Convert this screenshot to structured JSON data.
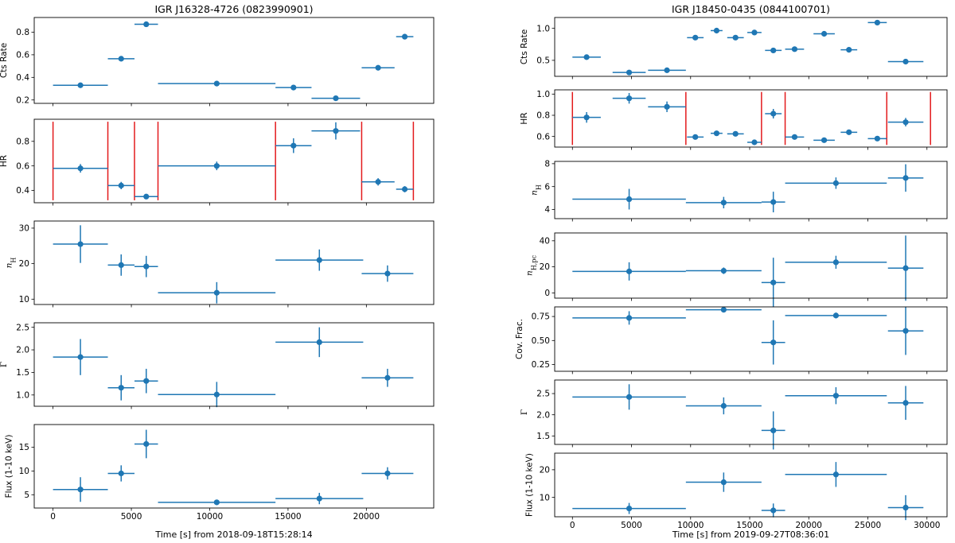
{
  "colors": {
    "marker": "#1f77b4",
    "divider": "#e31a1c",
    "frame": "#000000"
  },
  "chart_data": [
    {
      "type": "scatter",
      "style": "errorbar",
      "title": "IGR J16328-4726 (0823990901)",
      "xlabel": "Time [s] from 2018-09-18T15:28:14",
      "xlim": [
        -1200,
        24300
      ],
      "xticks": [
        0,
        5000,
        10000,
        15000,
        20000
      ],
      "panels": [
        {
          "ylabel": "Cts Rate",
          "ylim": [
            0.17,
            0.93
          ],
          "yticks": [
            {
              "v": 0.2,
              "label": "0.2"
            },
            {
              "v": 0.4,
              "label": "0.4"
            },
            {
              "v": 0.6,
              "label": "0.6"
            },
            {
              "v": 0.8,
              "label": "0.8"
            }
          ],
          "points": [
            {
              "x": 1750,
              "xerr": 1750,
              "y": 0.33,
              "yerr": 0.01
            },
            {
              "x": 4350,
              "xerr": 850,
              "y": 0.565,
              "yerr": 0.01
            },
            {
              "x": 5950,
              "xerr": 750,
              "y": 0.87,
              "yerr": 0.012
            },
            {
              "x": 10450,
              "xerr": 3750,
              "y": 0.345,
              "yerr": 0.008
            },
            {
              "x": 15350,
              "xerr": 1150,
              "y": 0.31,
              "yerr": 0.01
            },
            {
              "x": 18050,
              "xerr": 1550,
              "y": 0.215,
              "yerr": 0.008
            },
            {
              "x": 20750,
              "xerr": 1050,
              "y": 0.485,
              "yerr": 0.01
            },
            {
              "x": 22450,
              "xerr": 550,
              "y": 0.76,
              "yerr": 0.012
            }
          ]
        },
        {
          "ylabel": "HR",
          "ylim": [
            0.3,
            0.98
          ],
          "yticks": [
            {
              "v": 0.4,
              "label": "0.4"
            },
            {
              "v": 0.6,
              "label": "0.6"
            },
            {
              "v": 0.8,
              "label": "0.8"
            }
          ],
          "dividers": [
            0,
            3500,
            5200,
            6700,
            14200,
            19700,
            23000
          ],
          "divider_range": [
            0.32,
            0.96
          ],
          "points": [
            {
              "x": 1750,
              "xerr": 1750,
              "y": 0.58,
              "yerr": 0.035
            },
            {
              "x": 4350,
              "xerr": 850,
              "y": 0.44,
              "yerr": 0.03
            },
            {
              "x": 5950,
              "xerr": 750,
              "y": 0.35,
              "yerr": 0.015
            },
            {
              "x": 10450,
              "xerr": 3750,
              "y": 0.6,
              "yerr": 0.035
            },
            {
              "x": 15350,
              "xerr": 1150,
              "y": 0.765,
              "yerr": 0.06
            },
            {
              "x": 18050,
              "xerr": 1550,
              "y": 0.885,
              "yerr": 0.07
            },
            {
              "x": 20750,
              "xerr": 1050,
              "y": 0.47,
              "yerr": 0.03
            },
            {
              "x": 22450,
              "xerr": 550,
              "y": 0.41,
              "yerr": 0.025
            }
          ]
        },
        {
          "ylabel": "n_H",
          "ylim": [
            8.5,
            32
          ],
          "yticks": [
            {
              "v": 10,
              "label": "10"
            },
            {
              "v": 20,
              "label": "20"
            },
            {
              "v": 30,
              "label": "30"
            }
          ],
          "points": [
            {
              "x": 1750,
              "xerr": 1750,
              "y": 25.5,
              "yerr": 5.3
            },
            {
              "x": 4350,
              "xerr": 850,
              "y": 19.6,
              "yerr": 3
            },
            {
              "x": 5950,
              "xerr": 750,
              "y": 19.2,
              "yerr": 3
            },
            {
              "x": 10450,
              "xerr": 3750,
              "y": 11.8,
              "yerr": 3
            },
            {
              "x": 17000,
              "xerr": 2800,
              "y": 21,
              "yerr": 3
            },
            {
              "x": 21350,
              "xerr": 1650,
              "y": 17.2,
              "yerr": 2.3
            }
          ]
        },
        {
          "ylabel": "Γ",
          "ylim": [
            0.75,
            2.6
          ],
          "yticks": [
            {
              "v": 1.0,
              "label": "1.0"
            },
            {
              "v": 1.5,
              "label": "1.5"
            },
            {
              "v": 2.0,
              "label": "2.0"
            },
            {
              "v": 2.5,
              "label": "2.5"
            }
          ],
          "points": [
            {
              "x": 1750,
              "xerr": 1750,
              "y": 1.84,
              "yerr": 0.4
            },
            {
              "x": 4350,
              "xerr": 850,
              "y": 1.16,
              "yerr": 0.28
            },
            {
              "x": 5950,
              "xerr": 750,
              "y": 1.31,
              "yerr": 0.27
            },
            {
              "x": 10450,
              "xerr": 3750,
              "y": 1.01,
              "yerr": 0.28
            },
            {
              "x": 17000,
              "xerr": 2800,
              "y": 2.17,
              "yerr": 0.33
            },
            {
              "x": 21350,
              "xerr": 1650,
              "y": 1.38,
              "yerr": 0.2
            }
          ]
        },
        {
          "ylabel": "Flux (1-10 keV)",
          "ylim": [
            2.2,
            19.8
          ],
          "yticks": [
            {
              "v": 5,
              "label": "5"
            },
            {
              "v": 10,
              "label": "10"
            },
            {
              "v": 15,
              "label": "15"
            }
          ],
          "points": [
            {
              "x": 1750,
              "xerr": 1750,
              "y": 6.1,
              "yerr": 2.6
            },
            {
              "x": 4350,
              "xerr": 850,
              "y": 9.5,
              "yerr": 1.7
            },
            {
              "x": 5950,
              "xerr": 750,
              "y": 15.7,
              "yerr": 3
            },
            {
              "x": 10450,
              "xerr": 3750,
              "y": 3.4,
              "yerr": 0.5
            },
            {
              "x": 17000,
              "xerr": 2800,
              "y": 4.2,
              "yerr": 1.2
            },
            {
              "x": 21350,
              "xerr": 1650,
              "y": 9.5,
              "yerr": 1.3
            }
          ]
        }
      ]
    },
    {
      "type": "scatter",
      "style": "errorbar",
      "title": "IGR J18450-0435 (0844100701)",
      "xlabel": "Time [s] from 2019-09-27T08:36:01",
      "xlim": [
        -1500,
        31700
      ],
      "xticks": [
        0,
        5000,
        10000,
        15000,
        20000,
        25000,
        30000
      ],
      "panels": [
        {
          "ylabel": "Cts Rate",
          "ylim": [
            0.25,
            1.17
          ],
          "yticks": [
            {
              "v": 0.5,
              "label": "0.5"
            },
            {
              "v": 1.0,
              "label": "1.0"
            }
          ],
          "points": [
            {
              "x": 1200,
              "xerr": 1200,
              "y": 0.55,
              "yerr": 0.012
            },
            {
              "x": 4800,
              "xerr": 1400,
              "y": 0.31,
              "yerr": 0.01
            },
            {
              "x": 8000,
              "xerr": 1600,
              "y": 0.345,
              "yerr": 0.01
            },
            {
              "x": 10400,
              "xerr": 700,
              "y": 0.855,
              "yerr": 0.015
            },
            {
              "x": 12200,
              "xerr": 500,
              "y": 0.965,
              "yerr": 0.015
            },
            {
              "x": 13800,
              "xerr": 700,
              "y": 0.855,
              "yerr": 0.015
            },
            {
              "x": 15400,
              "xerr": 600,
              "y": 0.935,
              "yerr": 0.015
            },
            {
              "x": 17000,
              "xerr": 700,
              "y": 0.655,
              "yerr": 0.012
            },
            {
              "x": 18800,
              "xerr": 800,
              "y": 0.675,
              "yerr": 0.012
            },
            {
              "x": 21300,
              "xerr": 900,
              "y": 0.915,
              "yerr": 0.015
            },
            {
              "x": 23400,
              "xerr": 700,
              "y": 0.665,
              "yerr": 0.012
            },
            {
              "x": 25800,
              "xerr": 800,
              "y": 1.09,
              "yerr": 0.015
            },
            {
              "x": 28200,
              "xerr": 1500,
              "y": 0.48,
              "yerr": 0.012
            }
          ]
        },
        {
          "ylabel": "HR",
          "ylim": [
            0.5,
            1.04
          ],
          "yticks": [
            {
              "v": 0.6,
              "label": "0.6"
            },
            {
              "v": 0.8,
              "label": "0.8"
            },
            {
              "v": 1.0,
              "label": "1.0"
            }
          ],
          "dividers": [
            0,
            9600,
            16000,
            18000,
            26600,
            30300
          ],
          "divider_range": [
            0.52,
            1.02
          ],
          "points": [
            {
              "x": 1200,
              "xerr": 1200,
              "y": 0.78,
              "yerr": 0.05
            },
            {
              "x": 4800,
              "xerr": 1400,
              "y": 0.96,
              "yerr": 0.05
            },
            {
              "x": 8000,
              "xerr": 1600,
              "y": 0.88,
              "yerr": 0.05
            },
            {
              "x": 10400,
              "xerr": 700,
              "y": 0.595,
              "yerr": 0.02
            },
            {
              "x": 12200,
              "xerr": 500,
              "y": 0.63,
              "yerr": 0.02
            },
            {
              "x": 13800,
              "xerr": 700,
              "y": 0.625,
              "yerr": 0.02
            },
            {
              "x": 15400,
              "xerr": 600,
              "y": 0.545,
              "yerr": 0.015
            },
            {
              "x": 17000,
              "xerr": 700,
              "y": 0.815,
              "yerr": 0.045
            },
            {
              "x": 18800,
              "xerr": 800,
              "y": 0.595,
              "yerr": 0.02
            },
            {
              "x": 21300,
              "xerr": 900,
              "y": 0.565,
              "yerr": 0.02
            },
            {
              "x": 23400,
              "xerr": 700,
              "y": 0.64,
              "yerr": 0.025
            },
            {
              "x": 25800,
              "xerr": 800,
              "y": 0.58,
              "yerr": 0.02
            },
            {
              "x": 28200,
              "xerr": 1500,
              "y": 0.735,
              "yerr": 0.04
            }
          ]
        },
        {
          "ylabel": "n_H",
          "ylim": [
            3.2,
            8.2
          ],
          "yticks": [
            {
              "v": 4,
              "label": "4"
            },
            {
              "v": 6,
              "label": "6"
            },
            {
              "v": 8,
              "label": "8"
            }
          ],
          "points": [
            {
              "x": 4800,
              "xerr": 4800,
              "y": 4.9,
              "yerr": 0.9
            },
            {
              "x": 12800,
              "xerr": 3200,
              "y": 4.6,
              "yerr": 0.5
            },
            {
              "x": 17000,
              "xerr": 1000,
              "y": 4.65,
              "yerr": 0.9
            },
            {
              "x": 22300,
              "xerr": 4300,
              "y": 6.3,
              "yerr": 0.5
            },
            {
              "x": 28200,
              "xerr": 1500,
              "y": 6.75,
              "yerr": 1.2
            }
          ]
        },
        {
          "ylabel": "n_H,pc",
          "ylim": [
            -4,
            46
          ],
          "yticks": [
            {
              "v": 0,
              "label": "0"
            },
            {
              "v": 20,
              "label": "20"
            },
            {
              "v": 40,
              "label": "40"
            }
          ],
          "points": [
            {
              "x": 4800,
              "xerr": 4800,
              "y": 16.5,
              "yerr": 7
            },
            {
              "x": 12800,
              "xerr": 3200,
              "y": 17,
              "yerr": 2.5
            },
            {
              "x": 17000,
              "xerr": 1000,
              "y": 8,
              "yerr": 19
            },
            {
              "x": 22300,
              "xerr": 4300,
              "y": 23.5,
              "yerr": 5
            },
            {
              "x": 28200,
              "xerr": 1500,
              "y": 19,
              "yerr": 25
            }
          ]
        },
        {
          "ylabel": "Cov. Frac.",
          "ylim": [
            0.18,
            0.85
          ],
          "yticks": [
            {
              "v": 0.25,
              "label": "0.25"
            },
            {
              "v": 0.5,
              "label": "0.50"
            },
            {
              "v": 0.75,
              "label": "0.75"
            }
          ],
          "points": [
            {
              "x": 4800,
              "xerr": 4800,
              "y": 0.735,
              "yerr": 0.07
            },
            {
              "x": 12800,
              "xerr": 3200,
              "y": 0.82,
              "yerr": 0.01
            },
            {
              "x": 17000,
              "xerr": 1000,
              "y": 0.48,
              "yerr": 0.23
            },
            {
              "x": 22300,
              "xerr": 4300,
              "y": 0.76,
              "yerr": 0.03
            },
            {
              "x": 28200,
              "xerr": 1500,
              "y": 0.6,
              "yerr": 0.25
            }
          ]
        },
        {
          "ylabel": "Γ",
          "ylim": [
            1.3,
            2.82
          ],
          "yticks": [
            {
              "v": 1.5,
              "label": "1.5"
            },
            {
              "v": 2.0,
              "label": "2.0"
            },
            {
              "v": 2.5,
              "label": "2.5"
            }
          ],
          "points": [
            {
              "x": 4800,
              "xerr": 4800,
              "y": 2.42,
              "yerr": 0.3
            },
            {
              "x": 12800,
              "xerr": 3200,
              "y": 2.21,
              "yerr": 0.2
            },
            {
              "x": 17000,
              "xerr": 1000,
              "y": 1.63,
              "yerr": 0.45
            },
            {
              "x": 22300,
              "xerr": 4300,
              "y": 2.45,
              "yerr": 0.2
            },
            {
              "x": 28200,
              "xerr": 1500,
              "y": 2.28,
              "yerr": 0.4
            }
          ]
        },
        {
          "ylabel": "Flux (1-10 keV)",
          "ylim": [
            3,
            26
          ],
          "yticks": [
            {
              "v": 10,
              "label": "10"
            },
            {
              "v": 20,
              "label": "20"
            }
          ],
          "points": [
            {
              "x": 4800,
              "xerr": 4800,
              "y": 6,
              "yerr": 2
            },
            {
              "x": 12800,
              "xerr": 3200,
              "y": 15.5,
              "yerr": 3.5
            },
            {
              "x": 17000,
              "xerr": 1000,
              "y": 5.3,
              "yerr": 2.5
            },
            {
              "x": 22300,
              "xerr": 4300,
              "y": 18.3,
              "yerr": 4.5
            },
            {
              "x": 28200,
              "xerr": 1500,
              "y": 6.3,
              "yerr": 4.5
            }
          ]
        }
      ]
    }
  ]
}
